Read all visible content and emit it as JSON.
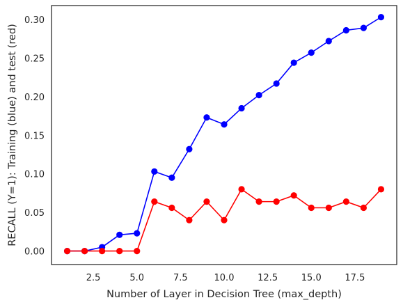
{
  "chart_data": {
    "type": "line",
    "title": "",
    "xlabel": "Number of Layer in Decision Tree (max_depth)",
    "ylabel": "RECALL (Y=1): Training (blue) and test (red)",
    "xlim": [
      0.1,
      19.9
    ],
    "ylim": [
      -0.0175,
      0.318
    ],
    "x_ticks": [
      2.5,
      5.0,
      7.5,
      10.0,
      12.5,
      15.0,
      17.5
    ],
    "x_tick_labels": [
      "2.5",
      "5.0",
      "7.5",
      "10.0",
      "12.5",
      "15.0",
      "17.5"
    ],
    "y_ticks": [
      0.0,
      0.05,
      0.1,
      0.15,
      0.2,
      0.25,
      0.3
    ],
    "y_tick_labels": [
      "0.00",
      "0.05",
      "0.10",
      "0.15",
      "0.20",
      "0.25",
      "0.30"
    ],
    "grid": false,
    "legend": "none",
    "x": [
      1,
      2,
      3,
      4,
      5,
      6,
      7,
      8,
      9,
      10,
      11,
      12,
      13,
      14,
      15,
      16,
      17,
      18,
      19
    ],
    "series": [
      {
        "color": "#0000ff",
        "marker": "circle",
        "values": [
          0.0,
          0.0,
          0.005,
          0.021,
          0.023,
          0.103,
          0.095,
          0.132,
          0.173,
          0.164,
          0.185,
          0.202,
          0.217,
          0.244,
          0.257,
          0.272,
          0.286,
          0.289,
          0.303
        ]
      },
      {
        "color": "#ff0000",
        "marker": "circle",
        "values": [
          0.0,
          0.0,
          0.0,
          0.0,
          0.0,
          0.064,
          0.056,
          0.04,
          0.064,
          0.04,
          0.08,
          0.064,
          0.064,
          0.072,
          0.056,
          0.056,
          0.064,
          0.056,
          0.08
        ]
      }
    ]
  }
}
